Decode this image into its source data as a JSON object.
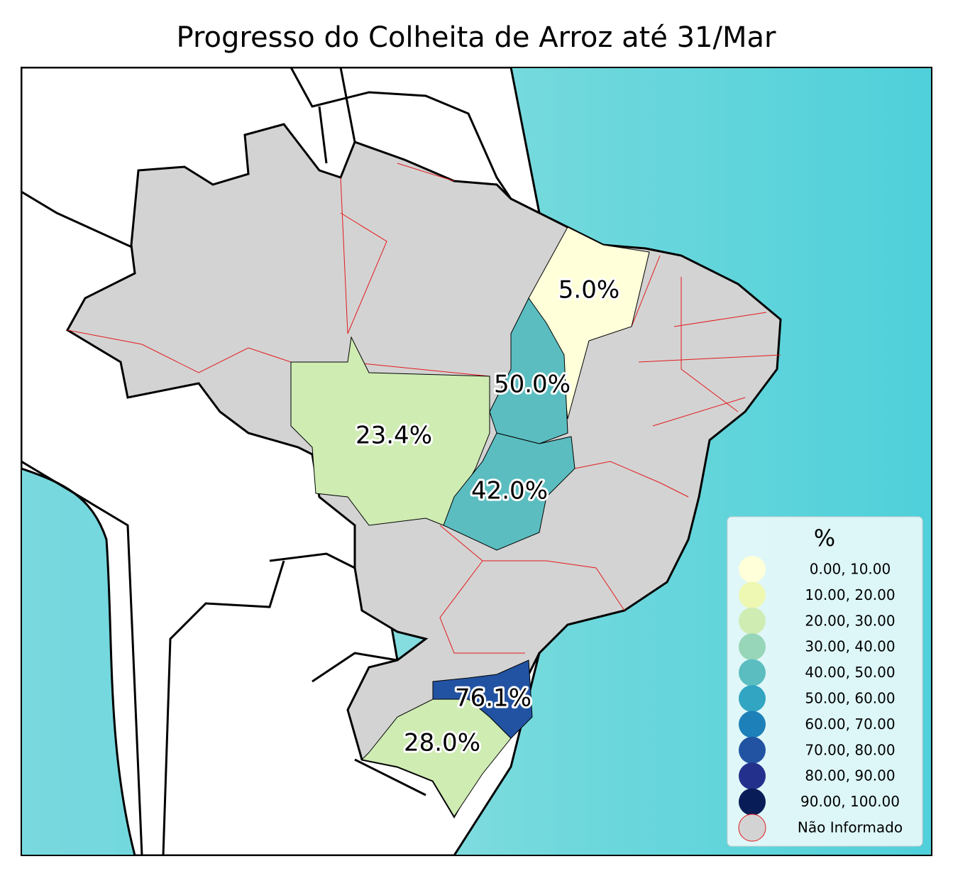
{
  "title": "Progresso do Colheita de Arroz até 31/Mar",
  "map": {
    "regions": [
      {
        "label": "5.0%",
        "color": "#ffffd9"
      },
      {
        "label": "50.0%",
        "color": "#5bbdc0"
      },
      {
        "label": "23.4%",
        "color": "#cfecb3"
      },
      {
        "label": "42.0%",
        "color": "#5bbdc0"
      },
      {
        "label": "76.1%",
        "color": "#2253a3"
      },
      {
        "label": "28.0%",
        "color": "#cfecb3"
      }
    ],
    "no_data_color": "#d3d3d3"
  },
  "legend": {
    "title": "%",
    "items": [
      {
        "label": "0.00,  10.00",
        "color": "#ffffd9"
      },
      {
        "label": "10.00,  20.00",
        "color": "#eef8b3"
      },
      {
        "label": "20.00,  30.00",
        "color": "#cfecb3"
      },
      {
        "label": "30.00,  40.00",
        "color": "#97d6b8"
      },
      {
        "label": "40.00,  50.00",
        "color": "#5bbdc0"
      },
      {
        "label": "50.00,  60.00",
        "color": "#31a5c2"
      },
      {
        "label": "60.00,  70.00",
        "color": "#1e80b8"
      },
      {
        "label": "70.00,  80.00",
        "color": "#2253a3"
      },
      {
        "label": "80.00,  90.00",
        "color": "#23318d"
      },
      {
        "label": "90.00, 100.00",
        "color": "#081d58"
      },
      {
        "label": "Não Informado",
        "color": "#d3d3d3"
      }
    ]
  }
}
